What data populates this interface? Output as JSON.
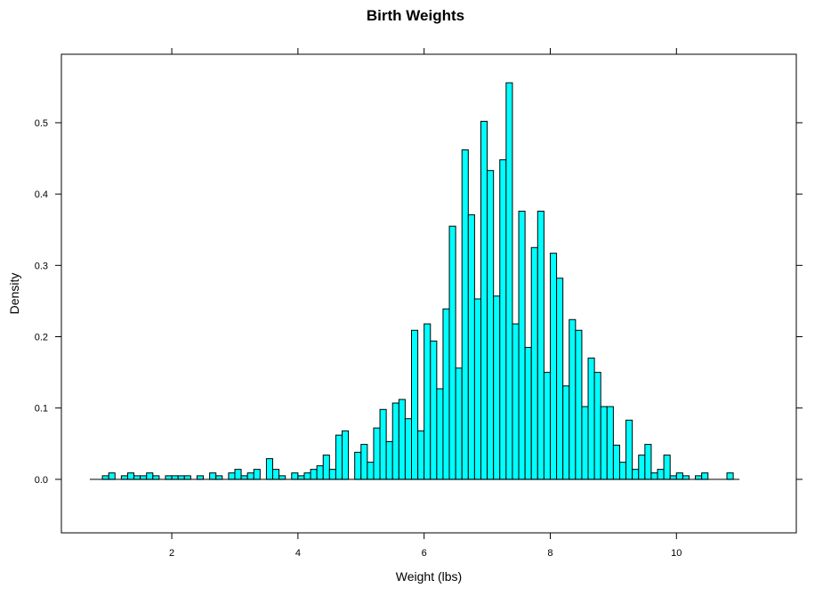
{
  "chart_data": {
    "type": "bar",
    "title": "Birth Weights",
    "xlabel": "Weight (lbs)",
    "ylabel": "Density",
    "xlim": [
      0.25,
      11.9
    ],
    "ylim": [
      -0.075,
      0.596
    ],
    "x_ticks": [
      2,
      4,
      6,
      8,
      10
    ],
    "y_ticks": [
      0.0,
      0.1,
      0.2,
      0.3,
      0.4,
      0.5
    ],
    "y_tick_labels": [
      "0.0",
      "0.1",
      "0.2",
      "0.3",
      "0.4",
      "0.5"
    ],
    "bin_start": 0.8,
    "bin_width": 0.1,
    "bar_color": "#00FFFF",
    "values": [
      0,
      0.005,
      0.009,
      0,
      0.005,
      0.009,
      0.005,
      0.005,
      0.009,
      0.005,
      0,
      0.005,
      0.005,
      0.005,
      0.005,
      0,
      0.005,
      0,
      0.009,
      0.005,
      0,
      0.009,
      0.014,
      0.005,
      0.009,
      0.014,
      0,
      0.029,
      0.014,
      0.005,
      0,
      0.009,
      0.005,
      0.009,
      0.014,
      0.019,
      0.034,
      0.014,
      0.062,
      0.068,
      0,
      0.038,
      0.049,
      0.024,
      0.072,
      0.098,
      0.053,
      0.107,
      0.112,
      0.085,
      0.209,
      0.068,
      0.218,
      0.194,
      0.127,
      0.239,
      0.355,
      0.156,
      0.462,
      0.371,
      0.253,
      0.502,
      0.433,
      0.257,
      0.448,
      0.556,
      0.218,
      0.376,
      0.185,
      0.325,
      0.376,
      0.15,
      0.317,
      0.282,
      0.131,
      0.224,
      0.209,
      0.102,
      0.17,
      0.15,
      0.102,
      0.102,
      0.048,
      0.024,
      0.083,
      0.014,
      0.034,
      0.049,
      0.009,
      0.014,
      0.034,
      0.005,
      0.009,
      0.005,
      0,
      0.005,
      0.009,
      0,
      0,
      0,
      0.009
    ]
  }
}
